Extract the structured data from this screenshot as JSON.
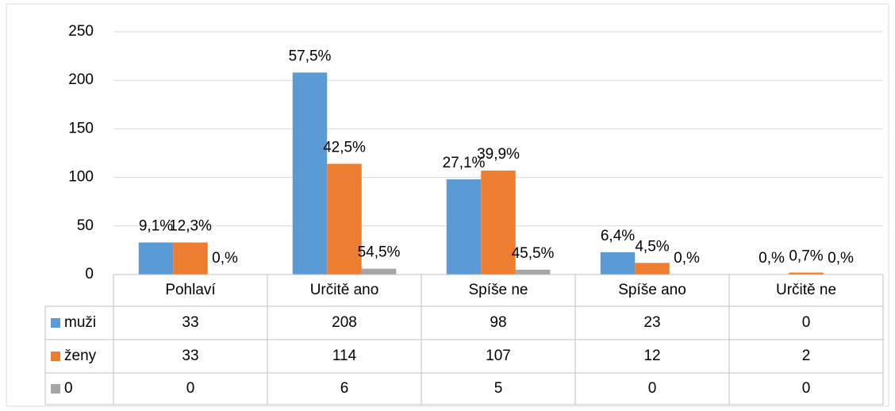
{
  "chart_data": {
    "type": "bar",
    "categories": [
      "Pohlaví",
      "Určitě ano",
      "Spíše ne",
      "Spíše ano",
      "Určitě ne"
    ],
    "series": [
      {
        "name": "muži",
        "color": "#5b9bd5",
        "values": [
          33,
          208,
          98,
          23,
          0
        ],
        "percent_labels": [
          "9,1%",
          "57,5%",
          "27,1%",
          "6,4%",
          "0,%"
        ]
      },
      {
        "name": "ženy",
        "color": "#ed7d31",
        "values": [
          33,
          114,
          107,
          12,
          2
        ],
        "percent_labels": [
          "12,3%",
          "42,5%",
          "39,9%",
          "4,5%",
          "0,7%"
        ]
      },
      {
        "name": "0",
        "color": "#a5a5a5",
        "values": [
          0,
          6,
          5,
          0,
          0
        ],
        "percent_labels": [
          "0,%",
          "54,5%",
          "45,5%",
          "0,%",
          "0,%"
        ]
      }
    ],
    "ylim": [
      0,
      250
    ],
    "yticks": [
      0,
      50,
      100,
      150,
      200,
      250
    ],
    "grid": true,
    "data_table": true
  }
}
